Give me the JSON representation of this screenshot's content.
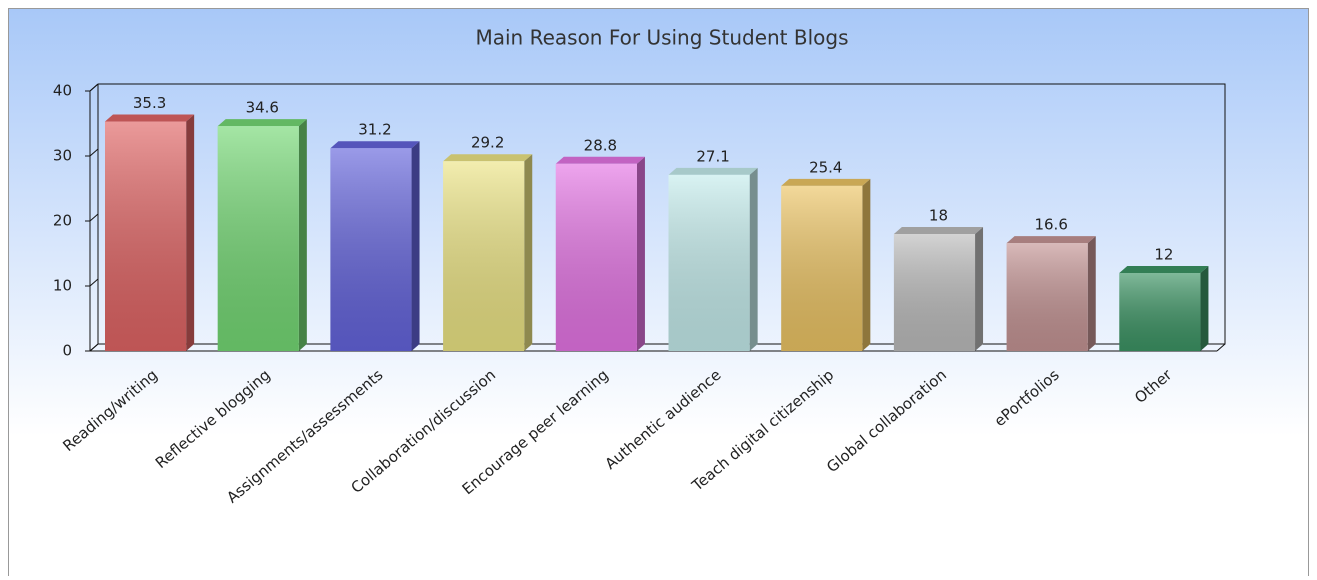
{
  "chart_data": {
    "type": "bar3d",
    "title": "Main Reason For Using Student Blogs",
    "categories": [
      "Reading/writing",
      "Reflective blogging",
      "Assignments/assessments",
      "Collaboration/discussion",
      "Encourage peer learning",
      "Authentic audience",
      "Teach digital citizenship",
      "Global collaboration",
      "ePortfolios",
      "Other"
    ],
    "values": [
      35.3,
      34.6,
      31.2,
      29.2,
      28.8,
      27.1,
      25.4,
      18,
      16.6,
      12
    ],
    "colors": [
      "#e06464",
      "#74d874",
      "#6464dc",
      "#ece484",
      "#e474e4",
      "#c4ecec",
      "#ecc464",
      "#bcbcbc",
      "#c49494",
      "#3c9464"
    ],
    "ylim": [
      0,
      40
    ],
    "yticks": [
      0,
      10,
      20,
      30,
      40
    ]
  }
}
